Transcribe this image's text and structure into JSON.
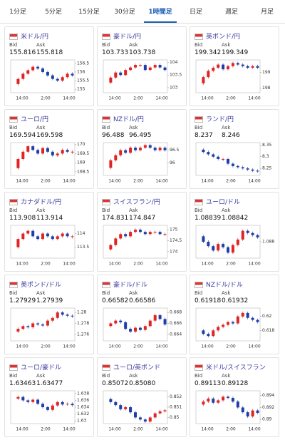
{
  "tabs": [
    "1分足",
    "5分足",
    "15分足",
    "30分足",
    "1時間足",
    "日足",
    "週足",
    "月足"
  ],
  "selected_tab": 4,
  "bid_label": "Bid",
  "ask_label": "Ask",
  "time_labels": [
    "14:00",
    "2:00",
    "14:00"
  ],
  "cards": [
    {
      "title": "米ドル/円",
      "bid": "155.816",
      "ask": "155.818",
      "ylim": [
        154.8,
        156.7
      ],
      "yticks": [
        156.5,
        156,
        155.5,
        155
      ],
      "closes": [
        155.3,
        155.6,
        155.9,
        156.1,
        156.3,
        156.2,
        156.0,
        155.8,
        155.6,
        155.5,
        155.7,
        155.9,
        155.8
      ]
    },
    {
      "title": "豪ドル/円",
      "bid": "103.733",
      "ask": "103.738",
      "ylim": [
        102.8,
        104.1
      ],
      "yticks": [
        104,
        103.5,
        103
      ],
      "closes": [
        103.2,
        103.4,
        103.6,
        103.5,
        103.7,
        103.8,
        103.9,
        103.9,
        103.7,
        103.8,
        103.9,
        103.8,
        103.7
      ]
    },
    {
      "title": "英ポンド/円",
      "bid": "199.342",
      "ask": "199.349",
      "ylim": [
        197.7,
        199.8
      ],
      "yticks": [
        199,
        198
      ],
      "closes": [
        198.3,
        198.7,
        199.1,
        199.3,
        199.5,
        199.2,
        199.4,
        199.6,
        199.5,
        199.4,
        199.3,
        199.4,
        199.3
      ]
    },
    {
      "title": "ユーロ/円",
      "bid": "169.594",
      "ask": "169.598",
      "ylim": [
        168.3,
        170.1
      ],
      "yticks": [
        170,
        169.5,
        169,
        168.5
      ],
      "closes": [
        168.7,
        169.2,
        169.6,
        169.9,
        169.7,
        169.5,
        169.8,
        169.6,
        169.4,
        169.5,
        169.7,
        169.6,
        169.6
      ]
    },
    {
      "title": "NZドル/円",
      "bid": "96.488",
      "ask": "96.495",
      "ylim": [
        95.5,
        96.8
      ],
      "yticks": [
        96.5,
        96
      ],
      "closes": [
        95.8,
        96.1,
        96.3,
        96.5,
        96.4,
        96.6,
        96.5,
        96.6,
        96.7,
        96.6,
        96.5,
        96.6,
        96.5
      ]
    },
    {
      "title": "ランド/円",
      "bid": "8.237",
      "ask": "8.246",
      "ylim": [
        8.22,
        8.36
      ],
      "yticks": [
        8.35,
        8.3,
        8.25
      ],
      "closes": [
        8.33,
        8.32,
        8.31,
        8.3,
        8.29,
        8.29,
        8.27,
        8.26,
        8.255,
        8.25,
        8.245,
        8.24,
        8.237
      ]
    },
    {
      "title": "カナダドル/円",
      "bid": "113.908",
      "ask": "113.914",
      "ylim": [
        113.1,
        114.3
      ],
      "yticks": [
        114,
        113.5
      ],
      "closes": [
        113.5,
        113.8,
        114.0,
        114.1,
        113.9,
        113.8,
        114.0,
        113.9,
        113.8,
        113.9,
        114.0,
        113.9,
        113.9
      ]
    },
    {
      "title": "スイスフラン/円",
      "bid": "174.831",
      "ask": "174.847",
      "ylim": [
        173.7,
        175.2
      ],
      "yticks": [
        175,
        174.5,
        174
      ],
      "closes": [
        174.1,
        174.3,
        174.6,
        174.8,
        174.7,
        174.9,
        175.0,
        174.9,
        174.8,
        174.9,
        174.9,
        174.8,
        174.8
      ]
    },
    {
      "title": "ユーロ/ドル",
      "bid": "1.08839",
      "ask": "1.08842",
      "ylim": [
        1.0865,
        1.0895
      ],
      "yticks": [
        1.088
      ],
      "closes": [
        1.0885,
        1.088,
        1.0876,
        1.0872,
        1.0878,
        1.0875,
        1.087,
        1.0877,
        1.0882,
        1.089,
        1.0888,
        1.0886,
        1.0884
      ]
    },
    {
      "title": "英ポンド/ドル",
      "bid": "1.27929",
      "ask": "1.27939",
      "ylim": [
        1.2748,
        1.2808
      ],
      "yticks": [
        1.28,
        1.278,
        1.276
      ],
      "closes": [
        1.2765,
        1.277,
        1.2775,
        1.2773,
        1.278,
        1.2778,
        1.2776,
        1.2785,
        1.279,
        1.28,
        1.2796,
        1.2794,
        1.2793
      ]
    },
    {
      "title": "豪ドル/ドル",
      "bid": "0.66582",
      "ask": "0.66586",
      "ylim": [
        0.6628,
        0.6688
      ],
      "yticks": [
        0.668,
        0.666,
        0.664
      ],
      "closes": [
        0.6655,
        0.666,
        0.6665,
        0.6662,
        0.665,
        0.6645,
        0.6652,
        0.6648,
        0.6655,
        0.6665,
        0.6675,
        0.6668,
        0.6658
      ]
    },
    {
      "title": "NZドル/ドル",
      "bid": "0.61918",
      "ask": "0.61932",
      "ylim": [
        0.6165,
        0.6212
      ],
      "yticks": [
        0.62,
        0.618
      ],
      "closes": [
        0.618,
        0.6175,
        0.6172,
        0.618,
        0.6185,
        0.6188,
        0.6192,
        0.619,
        0.62,
        0.6205,
        0.6198,
        0.6195,
        0.6192
      ]
    },
    {
      "title": "ユーロ/豪ドル",
      "bid": "1.63463",
      "ask": "1.63477",
      "ylim": [
        1.6292,
        1.6388
      ],
      "yticks": [
        1.638,
        1.636,
        1.634,
        1.632,
        1.63
      ],
      "closes": [
        1.6365,
        1.637,
        1.636,
        1.6355,
        1.6362,
        1.635,
        1.634,
        1.6332,
        1.6345,
        1.6355,
        1.6348,
        1.635,
        1.6346
      ]
    },
    {
      "title": "ユーロ/英ポンド",
      "bid": "0.85072",
      "ask": "0.85080",
      "ylim": [
        0.8494,
        0.8526
      ],
      "yticks": [
        0.852,
        0.851,
        0.85
      ],
      "closes": [
        0.8518,
        0.8515,
        0.8512,
        0.8508,
        0.851,
        0.8505,
        0.85,
        0.8498,
        0.8496,
        0.85,
        0.8504,
        0.8506,
        0.8507
      ]
    },
    {
      "title": "米ドル/スイスフラン",
      "bid": "0.89113",
      "ask": "0.89128",
      "ylim": [
        0.8893,
        0.8948
      ],
      "yticks": [
        0.894,
        0.892,
        0.89
      ],
      "closes": [
        0.8925,
        0.893,
        0.8935,
        0.8928,
        0.8932,
        0.8938,
        0.8936,
        0.893,
        0.892,
        0.8912,
        0.8905,
        0.8915,
        0.8911
      ]
    }
  ]
}
